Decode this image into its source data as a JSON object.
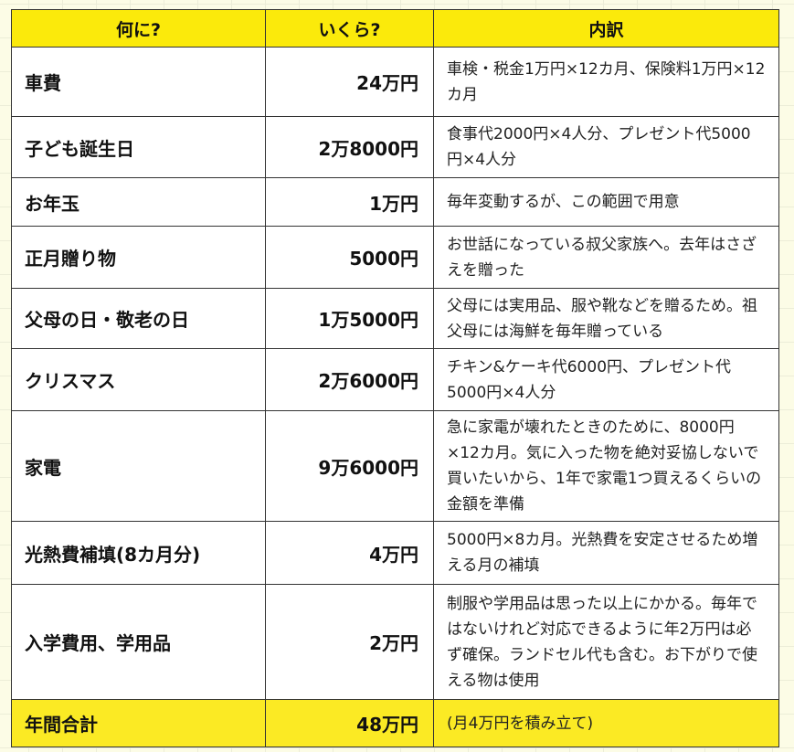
{
  "headers": [
    "何に?",
    "いくら?",
    "内訳"
  ],
  "rows": [
    {
      "item": "車費",
      "amount": "24万円",
      "detail": "車検・税金1万円×12カ月、保険料1万円×12カ月"
    },
    {
      "item": "子ども誕生日",
      "amount": "2万8000円",
      "detail": "食事代2000円×4人分、プレゼント代5000円×4人分"
    },
    {
      "item": "お年玉",
      "amount": "1万円",
      "detail": "毎年変動するが、この範囲で用意"
    },
    {
      "item": "正月贈り物",
      "amount": "5000円",
      "detail": "お世話になっている叔父家族へ。去年はさざえを贈った"
    },
    {
      "item": "父母の日・敬老の日",
      "amount": "1万5000円",
      "detail": "父母には実用品、服や靴などを贈るため。祖父母には海鮮を毎年贈っている"
    },
    {
      "item": "クリスマス",
      "amount": "2万6000円",
      "detail": "チキン&ケーキ代6000円、プレゼント代5000円×4人分"
    },
    {
      "item": "家電",
      "amount": "9万6000円",
      "detail": "急に家電が壊れたときのために、8000円×12カ月。気に入った物を絶対妥協しないで買いたいから、1年で家電1つ買えるくらいの金額を準備"
    },
    {
      "item": "光熱費補填(8カ月分)",
      "amount": "4万円",
      "detail": "5000円×8カ月。光熱費を安定させるため増える月の補填"
    },
    {
      "item": "入学費用、学用品",
      "amount": "2万円",
      "detail": "制服や学用品は思った以上にかかる。毎年ではないけれど対応できるように年2万円は必ず確保。ランドセル代も含む。お下がりで使える物は使用"
    }
  ],
  "total": {
    "item": "年間合計",
    "amount": "48万円",
    "detail": "(月4万円を積み立て)"
  },
  "colors": {
    "header": "#fbea0b",
    "total": "#fbea24"
  }
}
